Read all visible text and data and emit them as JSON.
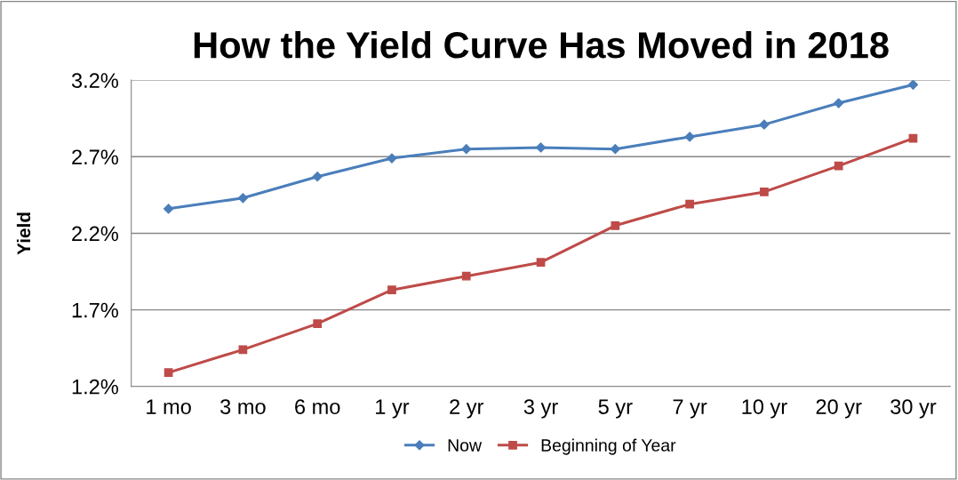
{
  "chart_data": {
    "type": "line",
    "title": "How the Yield Curve Has Moved in 2018",
    "ylabel": "Yield",
    "categories": [
      "1 mo",
      "3 mo",
      "6 mo",
      "1 yr",
      "2 yr",
      "3 yr",
      "5 yr",
      "7 yr",
      "10 yr",
      "20 yr",
      "30 yr"
    ],
    "series": [
      {
        "name": "Now",
        "color": "#4a7ebb",
        "marker": "diamond",
        "values": [
          2.36,
          2.43,
          2.57,
          2.69,
          2.75,
          2.76,
          2.75,
          2.83,
          2.91,
          3.05,
          3.17
        ]
      },
      {
        "name": "Beginning of Year",
        "color": "#be4b48",
        "marker": "square",
        "values": [
          1.29,
          1.44,
          1.61,
          1.83,
          1.92,
          2.01,
          2.25,
          2.39,
          2.47,
          2.64,
          2.82
        ]
      }
    ],
    "ylim": [
      1.2,
      3.2
    ],
    "yticks": [
      {
        "value": 1.2,
        "label": "1.2%"
      },
      {
        "value": 1.7,
        "label": "1.7%"
      },
      {
        "value": 2.2,
        "label": "2.2%"
      },
      {
        "value": 2.7,
        "label": "2.7%"
      },
      {
        "value": 3.2,
        "label": "3.2%"
      }
    ],
    "grid": "y",
    "legend": "bottom",
    "line_style": "solid"
  }
}
